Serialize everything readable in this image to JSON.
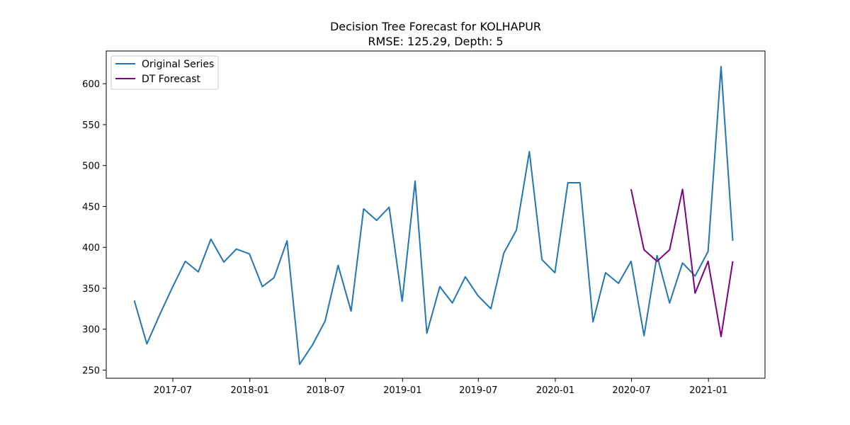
{
  "chart_data": {
    "type": "line",
    "title": "Decision Tree Forecast for KOLHAPUR",
    "subtitle": "RMSE: 125.29, Depth: 5",
    "xlabel": "",
    "ylabel": "",
    "xlim": [
      "2017-01-23",
      "2021-05-16"
    ],
    "ylim": [
      240,
      640
    ],
    "x_ticks": [
      "2017-07-01",
      "2018-01-01",
      "2018-07-01",
      "2019-01-01",
      "2019-07-01",
      "2020-01-01",
      "2020-07-01",
      "2021-01-01"
    ],
    "x_tick_labels": [
      "2017-07",
      "2018-01",
      "2018-07",
      "2019-01",
      "2019-07",
      "2020-01",
      "2020-07",
      "2021-01"
    ],
    "y_ticks": [
      250,
      300,
      350,
      400,
      450,
      500,
      550,
      600
    ],
    "y_tick_labels": [
      "250",
      "300",
      "350",
      "400",
      "450",
      "500",
      "550",
      "600"
    ],
    "grid": false,
    "legend_placement": "top-left",
    "series": [
      {
        "name": "Original Series",
        "color": "#1f77b4",
        "x": [
          "2017-03-31",
          "2017-04-30",
          "2017-05-31",
          "2017-06-30",
          "2017-07-31",
          "2017-08-31",
          "2017-09-30",
          "2017-10-31",
          "2017-11-30",
          "2017-12-31",
          "2018-01-31",
          "2018-02-28",
          "2018-03-31",
          "2018-04-30",
          "2018-05-31",
          "2018-06-30",
          "2018-07-31",
          "2018-08-31",
          "2018-09-30",
          "2018-10-31",
          "2018-11-30",
          "2018-12-31",
          "2019-01-31",
          "2019-02-28",
          "2019-03-31",
          "2019-04-30",
          "2019-05-31",
          "2019-06-30",
          "2019-07-31",
          "2019-08-31",
          "2019-09-30",
          "2019-10-31",
          "2019-11-30",
          "2019-12-31",
          "2020-01-31",
          "2020-02-29",
          "2020-03-31",
          "2020-04-30",
          "2020-05-31",
          "2020-06-30",
          "2020-07-31",
          "2020-08-31",
          "2020-09-30",
          "2020-10-31",
          "2020-11-30",
          "2020-12-31",
          "2021-01-31",
          "2021-02-28"
        ],
        "values": [
          335,
          282,
          318,
          351,
          383,
          370,
          410,
          382,
          398,
          392,
          352,
          363,
          408,
          257,
          281,
          310,
          378,
          322,
          447,
          433,
          449,
          334,
          481,
          295,
          352,
          332,
          364,
          341,
          325,
          393,
          421,
          517,
          385,
          369,
          479,
          479,
          309,
          369,
          356,
          383,
          292,
          390,
          332,
          381,
          365,
          395,
          621,
          408
        ]
      },
      {
        "name": "DT Forecast",
        "color": "#800080",
        "x": [
          "2020-06-30",
          "2020-07-31",
          "2020-08-31",
          "2020-09-30",
          "2020-10-31",
          "2020-11-30",
          "2020-12-31",
          "2021-01-31",
          "2021-02-28"
        ],
        "values": [
          471,
          397,
          383,
          397,
          471,
          344,
          383,
          291,
          383
        ]
      }
    ]
  }
}
